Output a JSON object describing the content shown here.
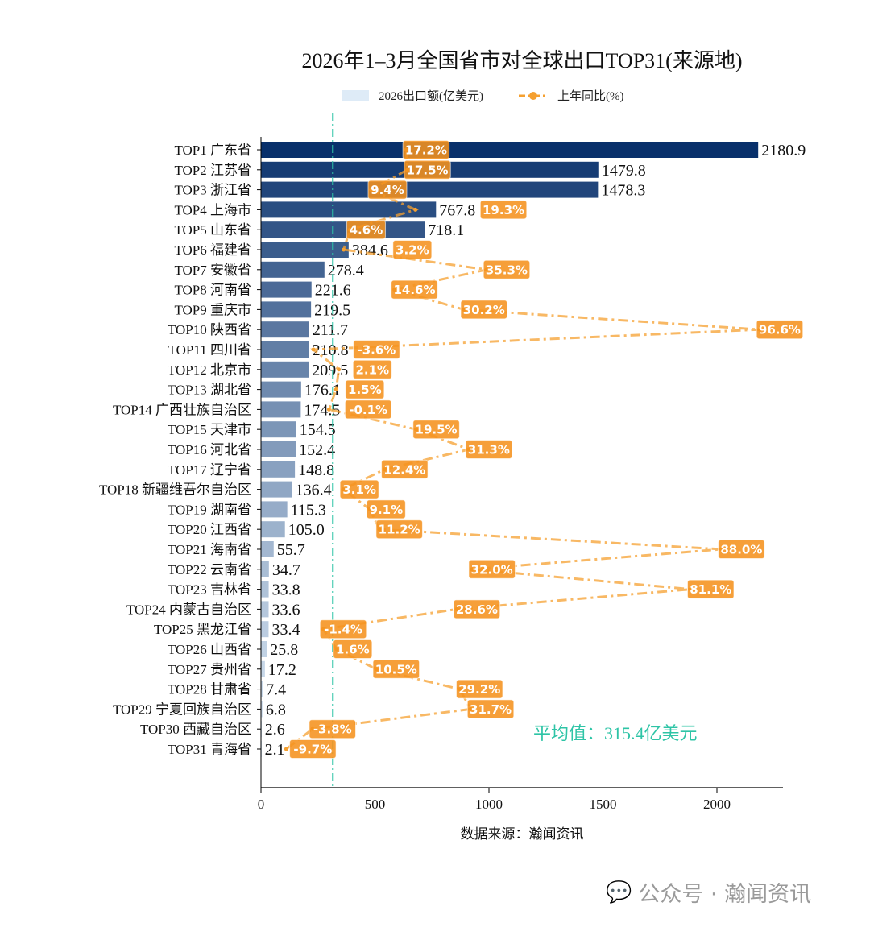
{
  "chart_data": {
    "type": "bar",
    "orientation": "horizontal",
    "title": "2026年1–3月全国省市对全球出口TOP31(来源地)",
    "xlabel": "数据来源：瀚闻资讯",
    "xlim": [
      0,
      2300
    ],
    "xticks": [
      0,
      500,
      1000,
      1500,
      2000
    ],
    "grid": false,
    "legend_position": "top-center",
    "categories": [
      "TOP1 广东省",
      "TOP2 江苏省",
      "TOP3 浙江省",
      "TOP4 上海市",
      "TOP5 山东省",
      "TOP6 福建省",
      "TOP7 安徽省",
      "TOP8 河南省",
      "TOP9 重庆市",
      "TOP10 陕西省",
      "TOP11 四川省",
      "TOP12 北京市",
      "TOP13 湖北省",
      "TOP14 广西壮族自治区",
      "TOP15 天津市",
      "TOP16 河北省",
      "TOP17 辽宁省",
      "TOP18 新疆维吾尔自治区",
      "TOP19 湖南省",
      "TOP20 江西省",
      "TOP21 海南省",
      "TOP22 云南省",
      "TOP23 吉林省",
      "TOP24 内蒙古自治区",
      "TOP25 黑龙江省",
      "TOP26 山西省",
      "TOP27 贵州省",
      "TOP28 甘肃省",
      "TOP29 宁夏回族自治区",
      "TOP30 西藏自治区",
      "TOP31 青海省"
    ],
    "series": [
      {
        "name": "2026出口额(亿美元)",
        "type": "bar",
        "values": [
          2180.9,
          1479.8,
          1478.3,
          767.8,
          718.1,
          384.6,
          278.4,
          221.6,
          219.5,
          211.7,
          210.8,
          209.5,
          176.1,
          174.5,
          154.5,
          152.4,
          148.8,
          136.4,
          115.3,
          105.0,
          55.7,
          34.7,
          33.8,
          33.6,
          33.4,
          25.8,
          17.2,
          7.4,
          6.8,
          2.6,
          2.1
        ],
        "color_scale": [
          "#08306b",
          "#deebf7"
        ]
      },
      {
        "name": "上年同比(%)",
        "type": "line",
        "values": [
          17.2,
          17.5,
          9.4,
          19.3,
          4.6,
          3.2,
          35.3,
          14.6,
          30.2,
          96.6,
          -3.6,
          2.1,
          1.5,
          -0.1,
          19.5,
          31.3,
          12.4,
          3.1,
          9.1,
          11.2,
          88.0,
          32.0,
          81.1,
          28.6,
          -1.4,
          1.6,
          10.5,
          29.2,
          31.7,
          -3.8,
          -9.7
        ],
        "color": "#f5a030"
      }
    ],
    "mean_line": {
      "value": 315.4,
      "label": "平均值：315.4亿美元",
      "color": "#2ec4a6"
    }
  },
  "watermark": "公众号 · 瀚闻资讯"
}
